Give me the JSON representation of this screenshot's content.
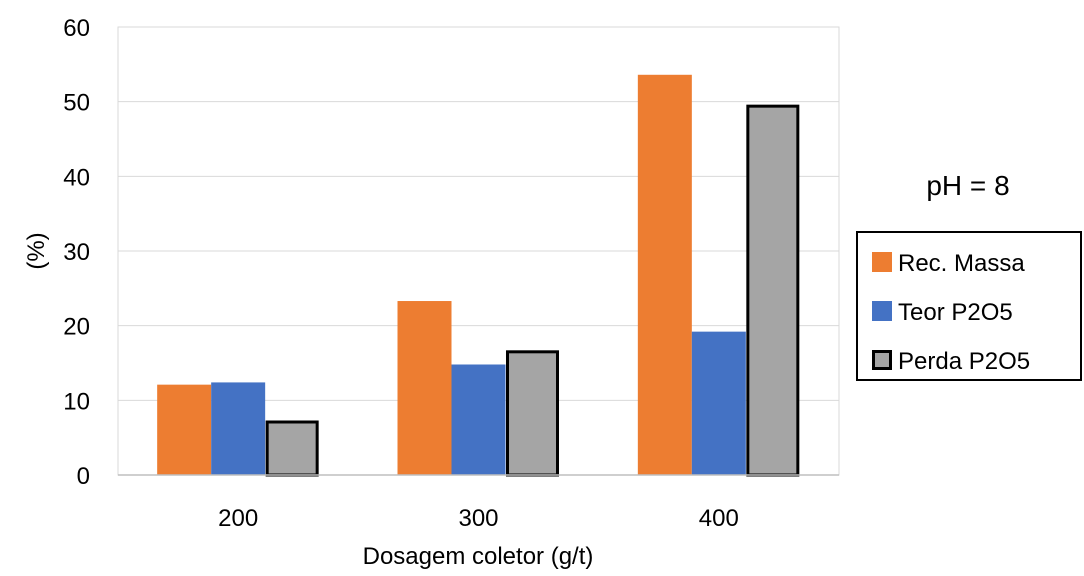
{
  "chart_data": {
    "type": "bar",
    "categories": [
      "200",
      "300",
      "400"
    ],
    "series": [
      {
        "name": "Rec. Massa",
        "values": [
          12.1,
          23.3,
          53.6
        ],
        "color": "#ED7D31"
      },
      {
        "name": "Teor P2O5",
        "values": [
          12.4,
          14.8,
          19.2
        ],
        "color": "#4472C4"
      },
      {
        "name": "Perda P2O5",
        "values": [
          7.3,
          16.7,
          49.6
        ],
        "color": "#A5A5A5",
        "outline": "#000000"
      }
    ],
    "title": "",
    "xlabel": "Dosagem coletor (g/t)",
    "ylabel": "(%)",
    "ylim": [
      0,
      60
    ],
    "yticks": [
      0,
      10,
      20,
      30,
      40,
      50,
      60
    ],
    "grid": true,
    "legend_position": "right",
    "annotation": "pH = 8"
  }
}
